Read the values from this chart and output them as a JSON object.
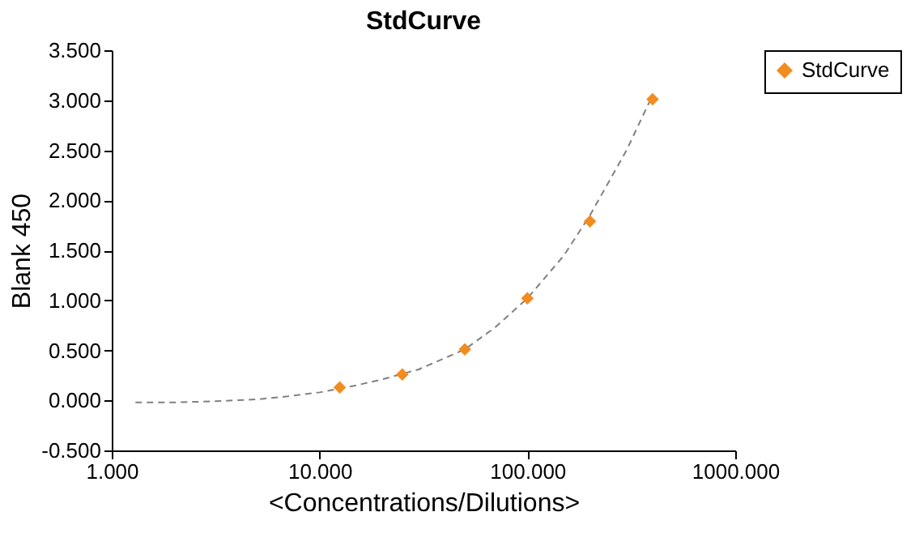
{
  "chart_data": {
    "type": "scatter",
    "title": "StdCurve",
    "xlabel": "<Concentrations/Dilutions>",
    "ylabel": "Blank 450",
    "log": "x",
    "grid": false,
    "legend": "right",
    "xlim": [
      1,
      1000
    ],
    "xticks": [
      {
        "value": 1,
        "label": "1.000"
      },
      {
        "value": 10,
        "label": "10.000"
      },
      {
        "value": 100,
        "label": "100.000"
      },
      {
        "value": 1000,
        "label": "1000.000"
      }
    ],
    "ylim": [
      -0.5,
      3.5
    ],
    "yticks": [
      {
        "value": -0.5,
        "label": "-0.500"
      },
      {
        "value": 0,
        "label": "0.000"
      },
      {
        "value": 0.5,
        "label": "0.500"
      },
      {
        "value": 1,
        "label": "1.000"
      },
      {
        "value": 1.5,
        "label": "1.500"
      },
      {
        "value": 2,
        "label": "2.000"
      },
      {
        "value": 2.5,
        "label": "2.500"
      },
      {
        "value": 3,
        "label": "3.000"
      },
      {
        "value": 3.5,
        "label": "3.500"
      }
    ],
    "series": [
      {
        "type": "line",
        "color": "#808080",
        "line_style": "dashed",
        "marker": "none",
        "x": [
          1.3,
          2,
          3,
          5,
          7,
          10,
          15,
          20,
          30,
          50,
          70,
          100,
          150,
          200,
          300,
          400
        ],
        "values": [
          -0.02,
          -0.02,
          -0.01,
          0.01,
          0.04,
          0.08,
          0.15,
          0.21,
          0.31,
          0.51,
          0.73,
          1.02,
          1.45,
          1.85,
          2.5,
          3.05
        ]
      },
      {
        "name": "StdCurve",
        "color": "#f28c1e",
        "marker": "diamond",
        "x": [
          12.5,
          25,
          50,
          100,
          200,
          400
        ],
        "values": [
          0.13,
          0.26,
          0.51,
          1.02,
          1.79,
          3.01
        ]
      }
    ]
  }
}
